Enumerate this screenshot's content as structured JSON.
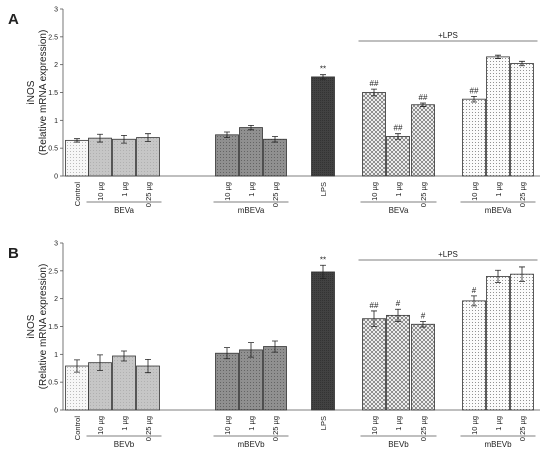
{
  "colors": {
    "control": "#f4f4f4",
    "bev": "#c4c4c4",
    "mbev": "#8e8e8e",
    "lps": "#3d3d3d",
    "lps_bev": "#ffffff",
    "lps_mbev": "#ffffff",
    "border": "#333333"
  },
  "chart_data": [
    {
      "type": "bar",
      "panel_label": "A",
      "ylabel": "iNOS",
      "ylabel2": "(Relative mRNA expression)",
      "ylim": [
        0,
        3
      ],
      "yticks": [
        0,
        0.5,
        1,
        1.5,
        2,
        2.5,
        3
      ],
      "ytick_labels": [
        "0",
        "0.5",
        "1",
        "1.5",
        "2",
        "2.5",
        "3"
      ],
      "group_line": "+LPS",
      "categories": [
        "Control",
        "10 µg",
        "1 µg",
        "0.25 µg",
        "10 µg",
        "1 µg",
        "0.25 µg",
        "LPS",
        "10 µg",
        "1 µg",
        "0.25 µg",
        "10 µg",
        "1 µg",
        "0.25 µg"
      ],
      "values": [
        0.64,
        0.68,
        0.66,
        0.69,
        0.74,
        0.87,
        0.66,
        1.78,
        1.5,
        0.71,
        1.28,
        1.38,
        2.14,
        2.02
      ],
      "errors": [
        0.03,
        0.07,
        0.07,
        0.07,
        0.05,
        0.04,
        0.05,
        0.04,
        0.06,
        0.05,
        0.03,
        0.05,
        0.03,
        0.04
      ],
      "bar_styles": [
        "control",
        "bev",
        "bev",
        "bev",
        "mbev",
        "mbev",
        "mbev",
        "lps",
        "lps_bev",
        "lps_bev",
        "lps_bev",
        "lps_mbev",
        "lps_mbev",
        "lps_mbev"
      ],
      "annotations": [
        "",
        "",
        "",
        "",
        "",
        "",
        "",
        "**",
        "##",
        "##",
        "##",
        "##",
        "",
        ""
      ],
      "subgroups": [
        {
          "label": "BEVa",
          "from": 1,
          "to": 3
        },
        {
          "label": "mBEVa",
          "from": 4,
          "to": 6
        },
        {
          "label": "BEVa",
          "from": 8,
          "to": 10
        },
        {
          "label": "mBEVa",
          "from": 11,
          "to": 13
        }
      ]
    },
    {
      "type": "bar",
      "panel_label": "B",
      "ylabel": "iNOS",
      "ylabel2": "(Relative mRNA expression)",
      "ylim": [
        0,
        3
      ],
      "yticks": [
        0,
        0.5,
        1,
        1.5,
        2,
        2.5,
        3
      ],
      "ytick_labels": [
        "0",
        "0.5",
        "1",
        "1.5",
        "2",
        "2.5",
        "3"
      ],
      "group_line": "+LPS",
      "categories": [
        "Control",
        "10 µg",
        "1 µg",
        "0.25 µg",
        "10 µg",
        "1 µg",
        "0.25 µg",
        "LPS",
        "10 µg",
        "1 µg",
        "0.25 µg",
        "10 µg",
        "1 µg",
        "0.25 µg"
      ],
      "values": [
        0.79,
        0.85,
        0.97,
        0.79,
        1.02,
        1.08,
        1.14,
        2.48,
        1.64,
        1.7,
        1.54,
        1.96,
        2.4,
        2.44
      ],
      "errors": [
        0.11,
        0.14,
        0.09,
        0.12,
        0.1,
        0.13,
        0.1,
        0.12,
        0.14,
        0.11,
        0.05,
        0.09,
        0.11,
        0.13
      ],
      "bar_styles": [
        "control",
        "bev",
        "bev",
        "bev",
        "mbev",
        "mbev",
        "mbev",
        "lps",
        "lps_bev",
        "lps_bev",
        "lps_bev",
        "lps_mbev",
        "lps_mbev",
        "lps_mbev"
      ],
      "annotations": [
        "",
        "",
        "",
        "",
        "",
        "",
        "",
        "**",
        "##",
        "#",
        "#",
        "#",
        "",
        ""
      ],
      "subgroups": [
        {
          "label": "BEVb",
          "from": 1,
          "to": 3
        },
        {
          "label": "mBEVb",
          "from": 4,
          "to": 6
        },
        {
          "label": "BEVb",
          "from": 8,
          "to": 10
        },
        {
          "label": "mBEVb",
          "from": 11,
          "to": 13
        }
      ]
    }
  ]
}
